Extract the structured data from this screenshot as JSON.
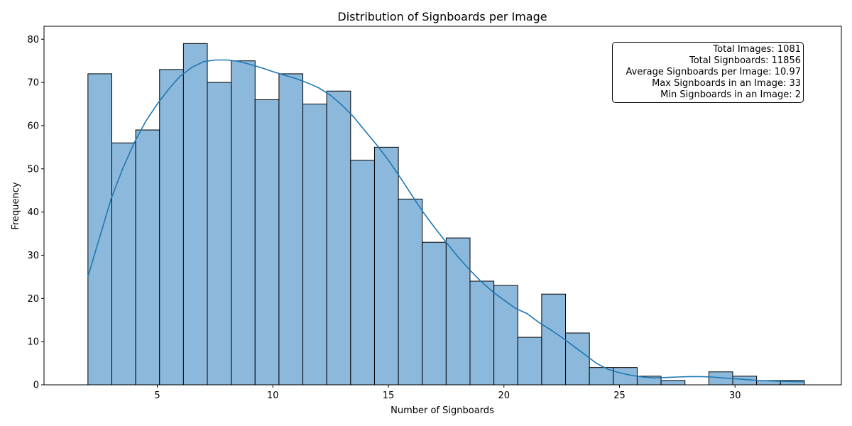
{
  "chart_data": {
    "type": "bar",
    "title": "Distribution of Signboards per Image",
    "xlabel": "Number of Signboards",
    "ylabel": "Frequency",
    "xlim": [
      0.1,
      34.6
    ],
    "ylim": [
      0,
      83
    ],
    "xticks": [
      5,
      10,
      15,
      20,
      25,
      30
    ],
    "yticks": [
      0,
      10,
      20,
      30,
      40,
      50,
      60,
      70,
      80
    ],
    "bar_color": "#8cb9db",
    "edge_color": "#000000",
    "kde_color": "#1f77b4",
    "bins": {
      "start": 2,
      "width": 1.0333,
      "values": [
        72,
        56,
        59,
        73,
        79,
        70,
        75,
        66,
        72,
        65,
        68,
        52,
        55,
        43,
        33,
        34,
        24,
        23,
        11,
        21,
        12,
        4,
        4,
        2,
        1,
        0,
        3,
        2,
        1,
        1
      ]
    },
    "kde": {
      "x": [
        2.0,
        2.5,
        3.0,
        3.5,
        4.0,
        4.5,
        5.0,
        5.5,
        6.0,
        6.5,
        7.0,
        7.5,
        8.0,
        8.5,
        9.0,
        9.5,
        10.0,
        10.5,
        11.0,
        11.5,
        12.0,
        12.5,
        13.0,
        13.5,
        14.0,
        14.5,
        15.0,
        15.5,
        16.0,
        16.5,
        17.0,
        17.5,
        18.0,
        18.5,
        19.0,
        19.5,
        20.0,
        20.5,
        21.0,
        21.5,
        22.0,
        22.5,
        23.0,
        23.5,
        24.0,
        24.5,
        25.0,
        25.5,
        26.0,
        26.5,
        27.0,
        27.5,
        28.0,
        28.5,
        29.0,
        29.5,
        30.0,
        30.5,
        31.0,
        31.5,
        32.0,
        32.5,
        33.0
      ],
      "y": [
        25,
        34,
        43,
        50,
        56,
        61,
        65,
        68.5,
        71.5,
        73.5,
        74.8,
        75.2,
        75.2,
        74.9,
        74.2,
        73.4,
        72.5,
        71.7,
        70.9,
        69.9,
        68.7,
        67,
        64.7,
        62,
        58.7,
        55.5,
        52,
        48.1,
        44,
        40,
        36.4,
        33,
        29.7,
        26.7,
        24,
        21.6,
        19.6,
        17.7,
        16.5,
        14.5,
        12.8,
        11,
        9,
        7,
        5,
        3.6,
        2.8,
        2.2,
        1.8,
        1.6,
        1.7,
        1.8,
        1.9,
        1.9,
        1.8,
        1.6,
        1.4,
        1.2,
        1.0,
        0.9,
        0.8,
        0.75,
        0.7
      ]
    },
    "annotation": {
      "lines": [
        "Total Images: 1081",
        "Total Signboards: 11856",
        "Average Signboards per Image: 10.97",
        "Max Signboards in an Image: 33",
        "Min Signboards in an Image: 2"
      ],
      "placement": "top-right"
    },
    "grid": false,
    "legend": false
  }
}
